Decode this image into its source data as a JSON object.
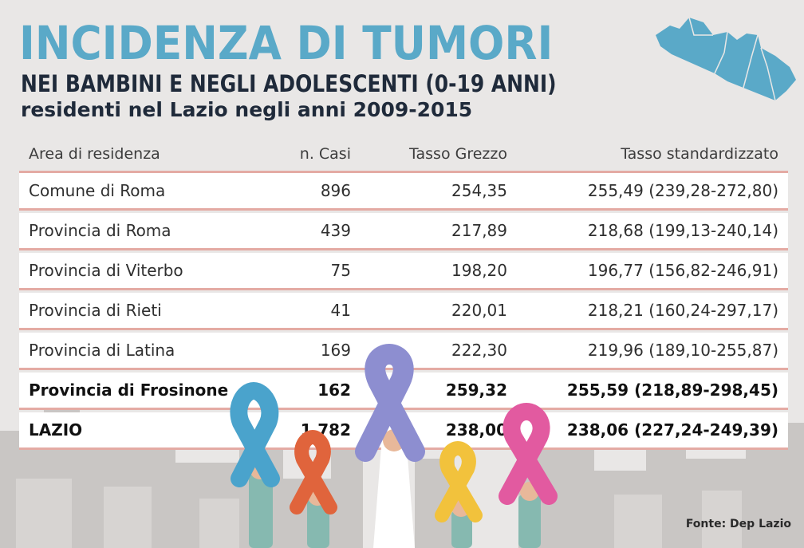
{
  "header": {
    "title": "INCIDENZA DI TUMORI",
    "subtitle": "NEI BAMBINI E NEGLI ADOLESCENTI (0-19 ANNI)",
    "subtitle2": "residenti nel Lazio negli anni 2009-2015"
  },
  "table": {
    "columns": [
      "Area di residenza",
      "n. Casi",
      "Tasso Grezzo",
      "Tasso standardizzato"
    ],
    "rows": [
      {
        "area": "Comune di Roma",
        "casi": "896",
        "grezzo": "254,35",
        "std": "255,49 (239,28-272,80)"
      },
      {
        "area": "Provincia di Roma",
        "casi": "439",
        "grezzo": "217,89",
        "std": "218,68 (199,13-240,14)"
      },
      {
        "area": "Provincia di Viterbo",
        "casi": "75",
        "grezzo": "198,20",
        "std": "196,77 (156,82-246,91)"
      },
      {
        "area": "Provincia di Rieti",
        "casi": "41",
        "grezzo": "220,01",
        "std": "218,21 (160,24-297,17)"
      },
      {
        "area": "Provincia di Latina",
        "casi": "169",
        "grezzo": "222,30",
        "std": "219,96 (189,10-255,87)"
      },
      {
        "area": "Provincia di Frosinone",
        "casi": "162",
        "grezzo": "259,32",
        "std": "255,59 (218,89-298,45)"
      },
      {
        "area": "LAZIO",
        "casi": "1.782",
        "grezzo": "238,00",
        "std": "238,06 (227,24-249,39)"
      }
    ]
  },
  "source": "Fonte: Dep Lazio",
  "colors": {
    "title": "#5aa9c8",
    "map": "#5aa9c8",
    "row_border": "#e4aba4",
    "ribbon_blue": "#4aa3cc",
    "ribbon_orange": "#e0643c",
    "ribbon_purple": "#8d8ed0",
    "ribbon_yellow": "#f2c23c",
    "ribbon_pink": "#e25aa0"
  }
}
